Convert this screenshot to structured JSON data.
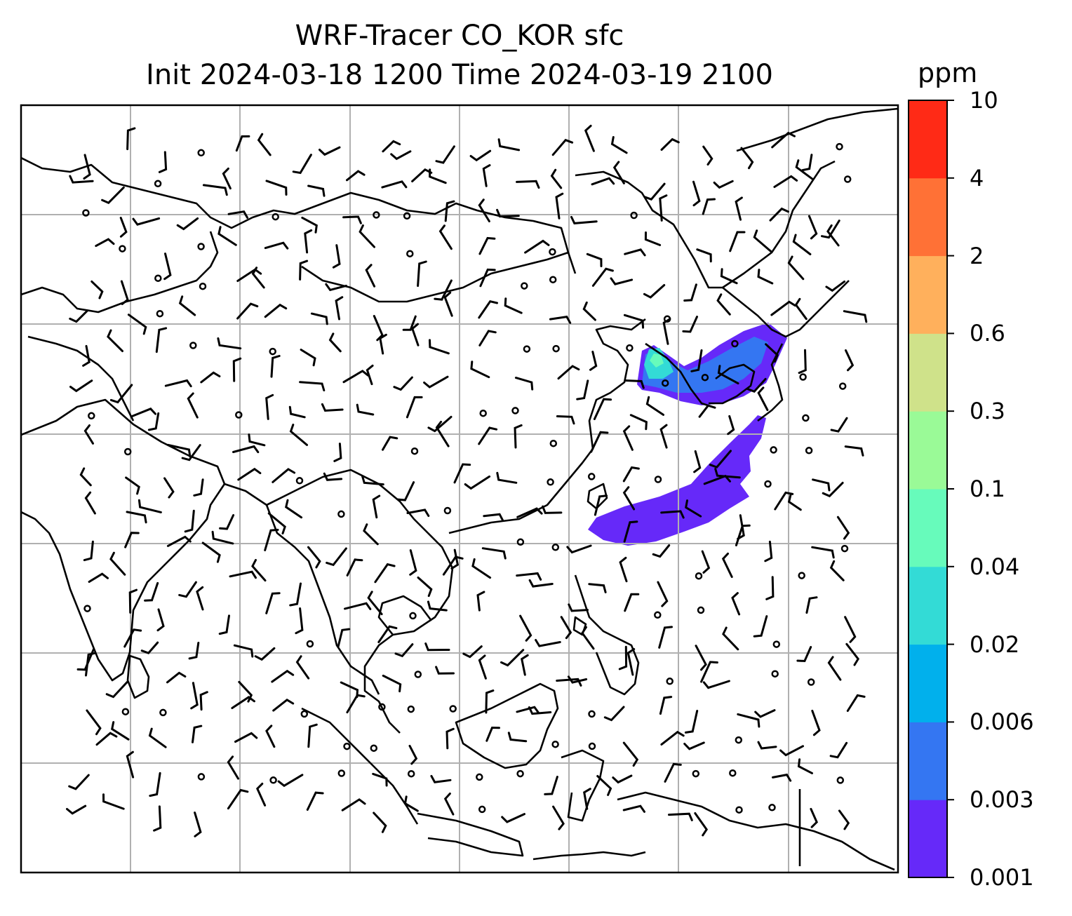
{
  "title_line1": "WRF-Tracer CO_KOR sfc",
  "title_line2": "Init 2024-03-18 1200 Time 2024-03-19 2100",
  "colorbar": {
    "unit": "ppm",
    "levels": [
      "0.001",
      "0.003",
      "0.006",
      "0.02",
      "0.04",
      "0.1",
      "0.3",
      "0.6",
      "2",
      "4",
      "10"
    ],
    "colors": [
      "#6629f9",
      "#3476f2",
      "#01b0ec",
      "#33dbd6",
      "#67fbbb",
      "#9afa97",
      "#cfe28a",
      "#ffb05c",
      "#ff7136",
      "#ff2a16"
    ]
  },
  "map": {
    "grid": "on",
    "wind_barbs": "on",
    "coastline_color": "#000000",
    "gridline_color": "#b0b0b0"
  }
}
